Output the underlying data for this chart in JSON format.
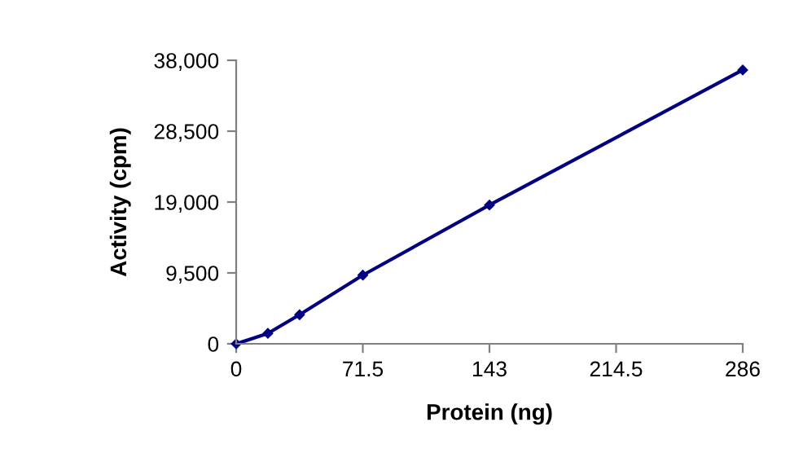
{
  "chart_data": {
    "type": "line",
    "xlabel": "Protein (ng)",
    "ylabel": "Activity (cpm)",
    "x": [
      0,
      17.9,
      35.8,
      71.5,
      143,
      286
    ],
    "series": [
      {
        "color": "#000080",
        "values": [
          0,
          1400,
          3900,
          9200,
          18600,
          36700
        ]
      }
    ],
    "xlim": [
      0,
      286
    ],
    "xticks": [
      0,
      71.5,
      143,
      214.5,
      286
    ],
    "ylim": [
      0,
      38000
    ],
    "yticks": [
      {
        "value": 0,
        "label": "0"
      },
      {
        "value": 9500,
        "label": "9,500"
      },
      {
        "value": 19000,
        "label": "19,000"
      },
      {
        "value": 28500,
        "label": "28,500"
      },
      {
        "value": 38000,
        "label": "38,000"
      }
    ],
    "marker": "diamond",
    "line_style": "solid",
    "grid": false
  }
}
